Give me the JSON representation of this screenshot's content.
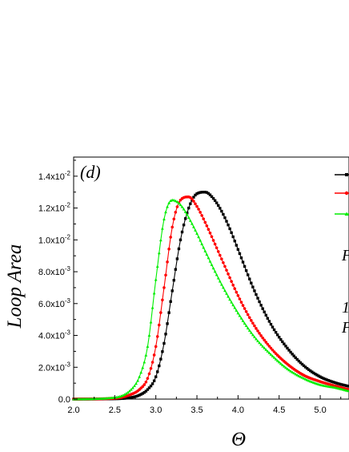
{
  "chart_data": {
    "type": "line",
    "panel_label": "(d)",
    "xlabel": "Θ",
    "ylabel": "Loop Area",
    "xlim": [
      2.0,
      5.35
    ],
    "ylim": [
      0.0,
      0.0152
    ],
    "x_ticks": [
      "2.0",
      "2.5",
      "3.0",
      "3.5",
      "4.0",
      "4.5",
      "5.0"
    ],
    "y_ticks": [
      {
        "value": 0.0,
        "base": "0.0",
        "exp": ""
      },
      {
        "value": 0.002,
        "base": "2.0x10",
        "exp": "-3"
      },
      {
        "value": 0.004,
        "base": "4.0x10",
        "exp": "-3"
      },
      {
        "value": 0.006,
        "base": "6.0x10",
        "exp": "-3"
      },
      {
        "value": 0.008,
        "base": "8.0x10",
        "exp": "-3"
      },
      {
        "value": 0.01,
        "base": "1.0x10",
        "exp": "-2"
      },
      {
        "value": 0.012,
        "base": "1.2x10",
        "exp": "-2"
      },
      {
        "value": 0.014,
        "base": "1.4x10",
        "exp": "-2"
      }
    ],
    "legend_fragments": [
      "F",
      "1",
      "F"
    ],
    "series": [
      {
        "color": "#000000",
        "marker": "square",
        "points": [
          [
            2.0,
            0.0
          ],
          [
            2.5,
            2e-05
          ],
          [
            2.7,
            0.0001
          ],
          [
            2.8,
            0.00025
          ],
          [
            2.9,
            0.0006
          ],
          [
            3.0,
            0.0014
          ],
          [
            3.1,
            0.0035
          ],
          [
            3.2,
            0.0068
          ],
          [
            3.3,
            0.01
          ],
          [
            3.4,
            0.012
          ],
          [
            3.5,
            0.0129
          ],
          [
            3.6,
            0.013
          ],
          [
            3.7,
            0.0126
          ],
          [
            3.8,
            0.0118
          ],
          [
            3.9,
            0.0107
          ],
          [
            4.0,
            0.0094
          ],
          [
            4.2,
            0.0068
          ],
          [
            4.4,
            0.0047
          ],
          [
            4.6,
            0.0032
          ],
          [
            4.8,
            0.0021
          ],
          [
            5.0,
            0.0014
          ],
          [
            5.2,
            0.001
          ],
          [
            5.35,
            0.0008
          ]
        ]
      },
      {
        "color": "#ff0000",
        "marker": "circle",
        "points": [
          [
            2.0,
            0.0
          ],
          [
            2.5,
            5e-05
          ],
          [
            2.7,
            0.0003
          ],
          [
            2.8,
            0.0006
          ],
          [
            2.9,
            0.0013
          ],
          [
            3.0,
            0.0033
          ],
          [
            3.1,
            0.007
          ],
          [
            3.2,
            0.0108
          ],
          [
            3.3,
            0.0125
          ],
          [
            3.4,
            0.0127
          ],
          [
            3.5,
            0.0121
          ],
          [
            3.6,
            0.0111
          ],
          [
            3.8,
            0.0088
          ],
          [
            4.0,
            0.0065
          ],
          [
            4.2,
            0.0046
          ],
          [
            4.4,
            0.0032
          ],
          [
            4.6,
            0.0022
          ],
          [
            4.8,
            0.0015
          ],
          [
            5.0,
            0.0011
          ],
          [
            5.2,
            0.0008
          ],
          [
            5.35,
            0.0006
          ]
        ]
      },
      {
        "color": "#00ee00",
        "marker": "triangle",
        "points": [
          [
            2.0,
            0.0
          ],
          [
            2.5,
            0.0001
          ],
          [
            2.7,
            0.0006
          ],
          [
            2.8,
            0.0014
          ],
          [
            2.9,
            0.0033
          ],
          [
            3.0,
            0.0075
          ],
          [
            3.1,
            0.0113
          ],
          [
            3.2,
            0.0125
          ],
          [
            3.3,
            0.0122
          ],
          [
            3.4,
            0.0114
          ],
          [
            3.5,
            0.0104
          ],
          [
            3.6,
            0.0093
          ],
          [
            3.8,
            0.0072
          ],
          [
            4.0,
            0.0054
          ],
          [
            4.2,
            0.0039
          ],
          [
            4.4,
            0.0028
          ],
          [
            4.6,
            0.0019
          ],
          [
            4.8,
            0.0013
          ],
          [
            5.0,
            0.0009
          ],
          [
            5.2,
            0.0007
          ],
          [
            5.35,
            0.0005
          ]
        ]
      }
    ]
  }
}
